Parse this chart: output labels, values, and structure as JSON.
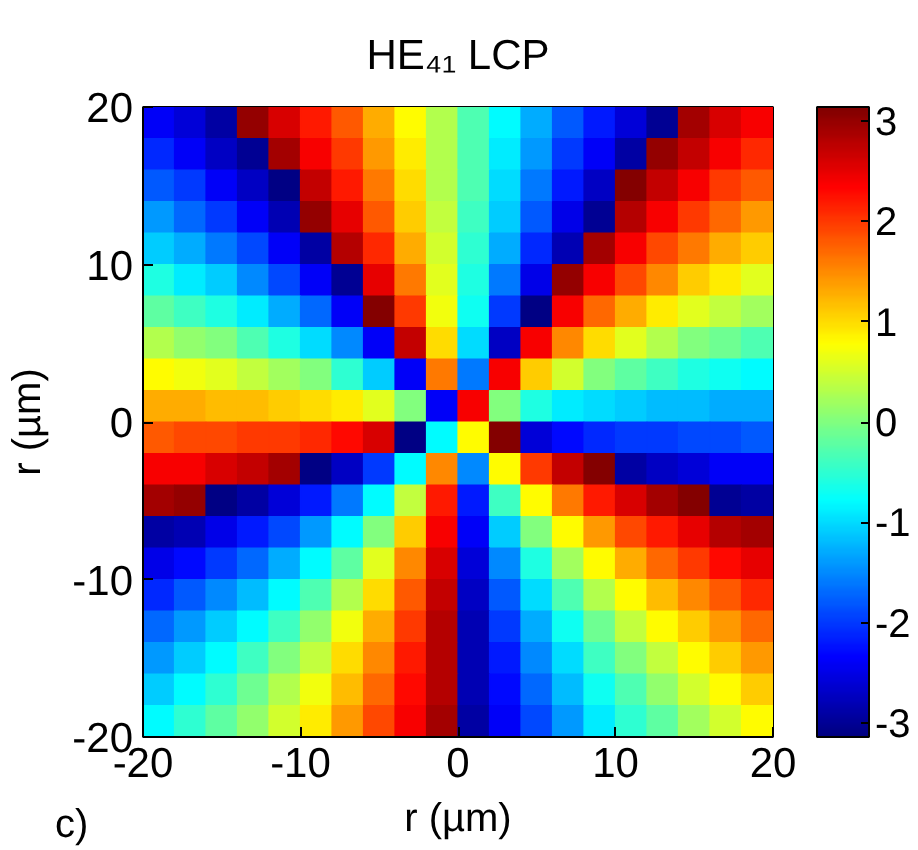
{
  "chart_data": {
    "type": "heatmap",
    "title": "HE₄₁ LCP",
    "xlabel": "r (µm)",
    "ylabel": "r (µm)",
    "cells": [
      [
        -2.4,
        -2.6,
        -2.9,
        3.0,
        2.6,
        2.2,
        1.8,
        1.3,
        0.8,
        0.3,
        -0.3,
        -0.8,
        -1.3,
        -1.8,
        -2.2,
        -2.6,
        -3.0,
        2.9,
        2.6,
        2.4
      ],
      [
        -2.1,
        -2.4,
        -2.7,
        -3.0,
        2.9,
        2.4,
        2.0,
        1.4,
        0.9,
        0.3,
        -0.3,
        -0.9,
        -1.4,
        -2.0,
        -2.4,
        -2.9,
        3.0,
        2.7,
        2.4,
        2.1
      ],
      [
        -1.8,
        -2.0,
        -2.4,
        -2.7,
        -3.1,
        2.7,
        2.2,
        1.6,
        1.0,
        0.3,
        -0.3,
        -1.0,
        -1.6,
        -2.2,
        -2.7,
        3.1,
        2.7,
        2.4,
        2.0,
        1.8
      ],
      [
        -1.4,
        -1.7,
        -2.0,
        -2.4,
        -2.8,
        3.0,
        2.5,
        1.8,
        1.1,
        0.4,
        -0.4,
        -1.1,
        -1.8,
        -2.5,
        -3.0,
        2.8,
        2.4,
        2.0,
        1.7,
        1.4
      ],
      [
        -1.1,
        -1.3,
        -1.6,
        -1.9,
        -2.4,
        -2.9,
        2.8,
        2.1,
        1.3,
        0.5,
        -0.5,
        -1.3,
        -2.1,
        -2.8,
        2.9,
        2.4,
        1.9,
        1.6,
        1.3,
        1.1
      ],
      [
        -0.6,
        -0.9,
        -1.1,
        -1.5,
        -1.9,
        -2.4,
        -3.0,
        2.5,
        1.6,
        0.6,
        -0.6,
        -1.6,
        -2.5,
        3.0,
        2.4,
        1.9,
        1.5,
        1.1,
        0.9,
        0.6
      ],
      [
        -0.2,
        -0.4,
        -0.6,
        -0.9,
        -1.3,
        -1.7,
        -2.4,
        3.1,
        2.0,
        0.7,
        -0.7,
        -2.0,
        -3.1,
        2.4,
        1.7,
        1.3,
        0.9,
        0.6,
        0.4,
        0.2
      ],
      [
        0.3,
        0.1,
        0.0,
        -0.3,
        -0.6,
        -1.0,
        -1.5,
        -2.4,
        2.7,
        1.0,
        -1.0,
        -2.7,
        2.4,
        1.5,
        1.0,
        0.6,
        0.3,
        0.0,
        -0.1,
        -0.3
      ],
      [
        0.8,
        0.7,
        0.6,
        0.4,
        0.2,
        0.0,
        -0.5,
        -1.1,
        -2.4,
        1.6,
        -1.6,
        2.4,
        1.1,
        0.5,
        0.0,
        -0.2,
        -0.4,
        -0.6,
        -0.7,
        -0.8
      ],
      [
        1.3,
        1.3,
        1.2,
        1.2,
        1.1,
        1.0,
        0.9,
        0.6,
        0.0,
        -2.4,
        2.4,
        0.0,
        -0.6,
        -0.9,
        -1.0,
        -1.1,
        -1.2,
        -1.2,
        -1.3,
        -1.3
      ],
      [
        1.8,
        1.9,
        1.9,
        2.0,
        2.0,
        2.1,
        2.3,
        2.6,
        -3.1,
        -0.8,
        0.8,
        3.1,
        -2.6,
        -2.3,
        -2.1,
        -2.0,
        -2.0,
        -1.9,
        -1.9,
        -1.8
      ],
      [
        2.4,
        2.4,
        2.6,
        2.7,
        2.9,
        -3.1,
        -2.7,
        -2.0,
        -0.8,
        1.5,
        -1.5,
        0.8,
        2.0,
        2.7,
        3.1,
        -2.9,
        -2.7,
        -2.6,
        -2.4,
        -2.4
      ],
      [
        2.9,
        3.0,
        -3.1,
        -2.9,
        -2.6,
        -2.2,
        -1.6,
        -0.8,
        0.4,
        2.2,
        -2.2,
        -0.4,
        0.8,
        1.6,
        2.2,
        2.6,
        2.9,
        3.1,
        -3.0,
        -2.9
      ],
      [
        -2.9,
        -2.8,
        -2.5,
        -2.2,
        -1.9,
        -1.4,
        -0.8,
        0.0,
        1.1,
        2.4,
        -2.4,
        -1.1,
        0.0,
        0.8,
        1.4,
        1.9,
        2.2,
        2.5,
        2.8,
        2.9
      ],
      [
        -2.5,
        -2.3,
        -2.0,
        -1.7,
        -1.3,
        -0.8,
        -0.2,
        0.6,
        1.5,
        2.6,
        -2.6,
        -1.5,
        -0.6,
        0.2,
        0.8,
        1.3,
        1.7,
        2.0,
        2.3,
        2.5
      ],
      [
        -2.1,
        -1.8,
        -1.5,
        -1.2,
        -0.8,
        -0.3,
        0.3,
        1.0,
        1.8,
        2.7,
        -2.7,
        -1.8,
        -1.0,
        -0.3,
        0.3,
        0.8,
        1.2,
        1.5,
        1.8,
        2.1
      ],
      [
        -1.7,
        -1.4,
        -1.1,
        -0.8,
        -0.4,
        0.1,
        0.7,
        1.3,
        2.0,
        2.8,
        -2.8,
        -2.0,
        -1.3,
        -0.7,
        -0.1,
        0.4,
        0.8,
        1.1,
        1.4,
        1.7
      ],
      [
        -1.4,
        -1.1,
        -0.8,
        -0.4,
        0.0,
        0.4,
        1.0,
        1.5,
        2.2,
        2.8,
        -2.8,
        -2.2,
        -1.5,
        -1.0,
        -0.4,
        0.0,
        0.4,
        0.8,
        1.1,
        1.4
      ],
      [
        -1.1,
        -0.8,
        -0.5,
        -0.1,
        0.3,
        0.7,
        1.2,
        1.7,
        2.3,
        2.8,
        -2.8,
        -2.3,
        -1.7,
        -1.2,
        -0.7,
        -0.3,
        0.1,
        0.5,
        0.8,
        1.1
      ],
      [
        -0.8,
        -0.5,
        -0.2,
        0.1,
        0.5,
        0.9,
        1.4,
        1.9,
        2.4,
        2.9,
        -2.9,
        -2.4,
        -1.9,
        -1.4,
        -0.9,
        -0.5,
        -0.2,
        0.2,
        0.5,
        0.8
      ]
    ],
    "xlim": [
      -20,
      20
    ],
    "ylim": [
      -20,
      20
    ],
    "xticks": [
      -20,
      -10,
      0,
      10,
      20
    ],
    "yticks": [
      -20,
      -10,
      0,
      10,
      20
    ],
    "clim": [
      -3.14,
      3.14
    ],
    "cticks": [
      -3,
      -2,
      -1,
      0,
      1,
      2,
      3
    ],
    "annotations": [
      "c)"
    ]
  }
}
